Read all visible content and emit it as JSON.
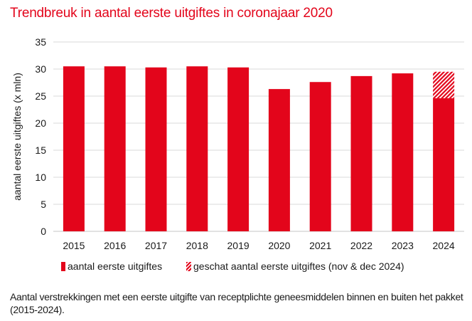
{
  "colors": {
    "accent": "#e3051b",
    "grid": "#d9d9d9",
    "text": "#1a1a1a"
  },
  "chart_data": {
    "type": "bar",
    "title": "Trendbreuk in aantal eerste uitgiftes in coronajaar 2020",
    "xlabel": "",
    "ylabel": "aantal eerste uitgiftes  (x mln)",
    "ylim": [
      0,
      35
    ],
    "yticks": [
      0,
      5,
      10,
      15,
      20,
      25,
      30,
      35
    ],
    "grid": true,
    "stacked": true,
    "categories": [
      "2015",
      "2016",
      "2017",
      "2018",
      "2019",
      "2020",
      "2021",
      "2022",
      "2023",
      "2024"
    ],
    "series": [
      {
        "name": "aantal eerste uitgiftes",
        "style": "solid",
        "values": [
          30.5,
          30.5,
          30.3,
          30.5,
          30.3,
          26.3,
          27.6,
          28.7,
          29.2,
          24.6
        ]
      },
      {
        "name": "geschat aantal eerste uitgiftes (nov & dec 2024)",
        "style": "hatched",
        "values": [
          0,
          0,
          0,
          0,
          0,
          0,
          0,
          0,
          0,
          4.9
        ]
      }
    ],
    "legend_position": "bottom"
  },
  "caption": "Aantal verstrekkingen met een eerste uitgifte van receptplichte geneesmiddelen binnen en buiten het pakket (2015-2024)."
}
